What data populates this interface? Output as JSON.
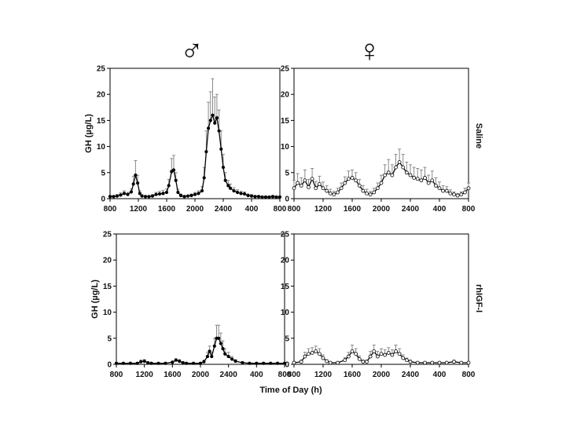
{
  "figure": {
    "male_symbol": "♂",
    "female_symbol": "♀",
    "x_axis_title": "Time of Day (h)",
    "row_labels": [
      "Saline",
      "rhIGF-I"
    ]
  },
  "chart_data": [
    {
      "id": "male-saline",
      "type": "line",
      "sex": "male",
      "treatment": "Saline",
      "ylabel": "GH (µg/L)",
      "ylim": [
        0,
        25
      ],
      "yticks": [
        0,
        5,
        10,
        15,
        20,
        25
      ],
      "xticks": [
        "800",
        "1200",
        "1600",
        "2000",
        "2400",
        "400",
        "800"
      ],
      "xlim_hours": [
        0,
        24
      ],
      "series": [
        {
          "name": "Saline",
          "points": [
            [
              0,
              0.4,
              0.2
            ],
            [
              0.5,
              0.4,
              0.2
            ],
            [
              1,
              0.5,
              0.3
            ],
            [
              1.5,
              0.7,
              0.4
            ],
            [
              2,
              1.0,
              0.5
            ],
            [
              2.5,
              0.8,
              0.4
            ],
            [
              3,
              1.3,
              0.6
            ],
            [
              3.3,
              2.8,
              1.5
            ],
            [
              3.6,
              4.5,
              2.8
            ],
            [
              3.9,
              3.0,
              1.5
            ],
            [
              4.2,
              1.0,
              0.5
            ],
            [
              4.5,
              0.5,
              0.3
            ],
            [
              5,
              0.4,
              0.2
            ],
            [
              5.5,
              0.4,
              0.2
            ],
            [
              6,
              0.5,
              0.3
            ],
            [
              6.5,
              0.8,
              0.4
            ],
            [
              7,
              0.9,
              0.5
            ],
            [
              7.5,
              1.0,
              0.6
            ],
            [
              8,
              1.2,
              0.7
            ],
            [
              8.3,
              2.5,
              1.2
            ],
            [
              8.7,
              5.2,
              2.5
            ],
            [
              9.0,
              5.5,
              2.8
            ],
            [
              9.3,
              3.5,
              1.5
            ],
            [
              9.6,
              1.2,
              0.6
            ],
            [
              10,
              0.6,
              0.3
            ],
            [
              10.5,
              0.4,
              0.2
            ],
            [
              11,
              0.5,
              0.2
            ],
            [
              11.5,
              0.6,
              0.3
            ],
            [
              12,
              0.8,
              0.4
            ],
            [
              12.5,
              1.0,
              0.5
            ],
            [
              13,
              1.5,
              0.8
            ],
            [
              13.3,
              4.0,
              2.0
            ],
            [
              13.6,
              9.0,
              4.0
            ],
            [
              13.9,
              13.5,
              5.0
            ],
            [
              14.2,
              15.0,
              5.5
            ],
            [
              14.5,
              16.0,
              7.0
            ],
            [
              14.8,
              14.5,
              5.0
            ],
            [
              15.1,
              15.5,
              4.5
            ],
            [
              15.4,
              13.0,
              4.0
            ],
            [
              15.7,
              9.5,
              3.5
            ],
            [
              16.0,
              6.0,
              2.5
            ],
            [
              16.3,
              3.5,
              1.5
            ],
            [
              16.7,
              2.5,
              1.0
            ],
            [
              17,
              2.0,
              0.8
            ],
            [
              17.5,
              1.5,
              0.6
            ],
            [
              18,
              1.2,
              0.5
            ],
            [
              18.5,
              1.0,
              0.4
            ],
            [
              19,
              0.9,
              0.4
            ],
            [
              19.5,
              0.6,
              0.3
            ],
            [
              20,
              0.5,
              0.3
            ],
            [
              20.5,
              0.4,
              0.2
            ],
            [
              21,
              0.4,
              0.2
            ],
            [
              21.5,
              0.3,
              0.2
            ],
            [
              22,
              0.3,
              0.2
            ],
            [
              22.5,
              0.3,
              0.2
            ],
            [
              23,
              0.4,
              0.2
            ],
            [
              23.5,
              0.3,
              0.2
            ],
            [
              24,
              0.3,
              0.2
            ]
          ]
        }
      ]
    },
    {
      "id": "female-saline",
      "type": "line",
      "sex": "female",
      "treatment": "Saline",
      "ylabel": "",
      "ylim": [
        0,
        25
      ],
      "yticks": [
        0,
        5,
        10,
        15,
        20,
        25
      ],
      "xticks": [
        "800",
        "1200",
        "1600",
        "2000",
        "2400",
        "400",
        "800"
      ],
      "xlim_hours": [
        0,
        24
      ],
      "series": [
        {
          "name": "Saline",
          "points": [
            [
              0,
              2.0,
              1.5
            ],
            [
              0.5,
              3.0,
              1.8
            ],
            [
              1,
              2.5,
              1.5
            ],
            [
              1.5,
              3.5,
              2.0
            ],
            [
              2,
              2.2,
              1.5
            ],
            [
              2.5,
              3.8,
              2.0
            ],
            [
              3,
              2.0,
              1.3
            ],
            [
              3.5,
              2.8,
              1.5
            ],
            [
              4,
              2.0,
              1.2
            ],
            [
              4.5,
              1.5,
              1.0
            ],
            [
              5,
              1.0,
              0.8
            ],
            [
              5.5,
              0.8,
              0.6
            ],
            [
              6,
              1.2,
              0.8
            ],
            [
              6.5,
              2.0,
              1.0
            ],
            [
              7,
              3.0,
              1.2
            ],
            [
              7.5,
              3.8,
              1.5
            ],
            [
              8,
              4.0,
              1.5
            ],
            [
              8.5,
              3.5,
              1.5
            ],
            [
              9,
              2.5,
              1.2
            ],
            [
              9.5,
              1.5,
              1.0
            ],
            [
              10,
              1.0,
              0.8
            ],
            [
              10.5,
              0.8,
              0.6
            ],
            [
              11,
              1.2,
              0.8
            ],
            [
              11.5,
              2.0,
              1.0
            ],
            [
              12,
              3.0,
              1.5
            ],
            [
              12.5,
              4.5,
              2.0
            ],
            [
              13,
              5.0,
              2.5
            ],
            [
              13.5,
              4.5,
              2.0
            ],
            [
              14,
              6.0,
              2.5
            ],
            [
              14.5,
              7.0,
              2.5
            ],
            [
              15,
              6.0,
              2.5
            ],
            [
              15.5,
              5.0,
              2.0
            ],
            [
              16,
              4.5,
              2.0
            ],
            [
              16.5,
              4.0,
              2.0
            ],
            [
              17,
              3.8,
              2.0
            ],
            [
              17.5,
              3.5,
              2.0
            ],
            [
              18,
              4.0,
              2.0
            ],
            [
              18.5,
              3.0,
              1.5
            ],
            [
              19,
              3.5,
              1.8
            ],
            [
              19.5,
              2.5,
              1.5
            ],
            [
              20,
              2.0,
              1.2
            ],
            [
              20.5,
              1.5,
              1.0
            ],
            [
              21,
              1.5,
              0.8
            ],
            [
              21.5,
              1.0,
              0.7
            ],
            [
              22,
              0.8,
              0.5
            ],
            [
              22.5,
              0.6,
              0.4
            ],
            [
              23,
              0.8,
              0.5
            ],
            [
              23.5,
              1.2,
              0.8
            ],
            [
              24,
              2.0,
              1.0
            ]
          ]
        }
      ]
    },
    {
      "id": "male-rhigf",
      "type": "line",
      "sex": "male",
      "treatment": "rhIGF-I",
      "ylabel": "GH (µg/L)",
      "ylim": [
        0,
        25
      ],
      "yticks": [
        0,
        5,
        10,
        15,
        20,
        25
      ],
      "xticks": [
        "800",
        "1200",
        "1600",
        "2000",
        "2400",
        "400",
        "800"
      ],
      "xlim_hours": [
        0,
        24
      ],
      "series": [
        {
          "name": "rhIGF-I",
          "points": [
            [
              0,
              0.2,
              0.1
            ],
            [
              1,
              0.2,
              0.1
            ],
            [
              2,
              0.2,
              0.1
            ],
            [
              3,
              0.2,
              0.1
            ],
            [
              3.5,
              0.5,
              0.3
            ],
            [
              4,
              0.6,
              0.3
            ],
            [
              4.5,
              0.3,
              0.2
            ],
            [
              5,
              0.2,
              0.1
            ],
            [
              6,
              0.2,
              0.1
            ],
            [
              7,
              0.2,
              0.1
            ],
            [
              8,
              0.4,
              0.2
            ],
            [
              8.5,
              0.8,
              0.3
            ],
            [
              9,
              0.6,
              0.3
            ],
            [
              9.5,
              0.3,
              0.2
            ],
            [
              10,
              0.2,
              0.1
            ],
            [
              11,
              0.2,
              0.1
            ],
            [
              12,
              0.2,
              0.1
            ],
            [
              12.5,
              0.5,
              0.3
            ],
            [
              13,
              1.5,
              0.8
            ],
            [
              13.3,
              2.5,
              1.0
            ],
            [
              13.6,
              1.5,
              0.8
            ],
            [
              14,
              3.5,
              1.5
            ],
            [
              14.3,
              5.0,
              2.5
            ],
            [
              14.6,
              5.0,
              2.5
            ],
            [
              14.9,
              4.0,
              2.0
            ],
            [
              15.2,
              3.0,
              1.5
            ],
            [
              15.5,
              2.0,
              1.0
            ],
            [
              16,
              1.5,
              0.8
            ],
            [
              16.5,
              1.0,
              0.5
            ],
            [
              17,
              0.6,
              0.3
            ],
            [
              18,
              0.3,
              0.2
            ],
            [
              19,
              0.2,
              0.1
            ],
            [
              20,
              0.2,
              0.1
            ],
            [
              21,
              0.2,
              0.1
            ],
            [
              22,
              0.2,
              0.1
            ],
            [
              23,
              0.2,
              0.1
            ],
            [
              24,
              0.2,
              0.1
            ]
          ]
        }
      ]
    },
    {
      "id": "female-rhigf",
      "type": "line",
      "sex": "female",
      "treatment": "rhIGF-I",
      "ylabel": "",
      "ylim": [
        0,
        25
      ],
      "yticks": [
        0,
        5,
        10,
        15,
        20,
        25
      ],
      "xticks": [
        "800",
        "1200",
        "1600",
        "2000",
        "2400",
        "400",
        "800"
      ],
      "xlim_hours": [
        0,
        24
      ],
      "series": [
        {
          "name": "rhIGF-I",
          "points": [
            [
              0,
              0.3,
              0.2
            ],
            [
              1,
              0.5,
              0.3
            ],
            [
              1.5,
              1.5,
              0.8
            ],
            [
              2,
              2.0,
              1.0
            ],
            [
              2.5,
              2.2,
              1.0
            ],
            [
              3,
              2.5,
              1.0
            ],
            [
              3.5,
              2.0,
              1.0
            ],
            [
              4,
              1.2,
              0.6
            ],
            [
              4.5,
              0.6,
              0.3
            ],
            [
              5,
              0.3,
              0.2
            ],
            [
              6,
              0.3,
              0.2
            ],
            [
              7,
              0.8,
              0.5
            ],
            [
              7.5,
              1.5,
              0.8
            ],
            [
              8,
              2.5,
              1.2
            ],
            [
              8.5,
              2.0,
              1.0
            ],
            [
              9,
              1.0,
              0.6
            ],
            [
              9.5,
              0.5,
              0.3
            ],
            [
              10,
              0.5,
              0.3
            ],
            [
              10.5,
              1.5,
              1.0
            ],
            [
              11,
              2.5,
              1.2
            ],
            [
              11.5,
              1.5,
              1.0
            ],
            [
              12,
              2.0,
              1.0
            ],
            [
              12.5,
              1.8,
              1.0
            ],
            [
              13,
              2.2,
              1.0
            ],
            [
              13.5,
              1.8,
              1.0
            ],
            [
              14,
              2.5,
              1.2
            ],
            [
              14.5,
              2.0,
              1.0
            ],
            [
              15,
              1.2,
              0.6
            ],
            [
              15.5,
              0.8,
              0.4
            ],
            [
              16,
              0.5,
              0.3
            ],
            [
              17,
              0.3,
              0.2
            ],
            [
              18,
              0.3,
              0.2
            ],
            [
              19,
              0.3,
              0.2
            ],
            [
              20,
              0.3,
              0.2
            ],
            [
              21,
              0.3,
              0.2
            ],
            [
              22,
              0.5,
              0.3
            ],
            [
              23,
              0.3,
              0.2
            ],
            [
              24,
              0.3,
              0.2
            ]
          ]
        }
      ]
    }
  ]
}
